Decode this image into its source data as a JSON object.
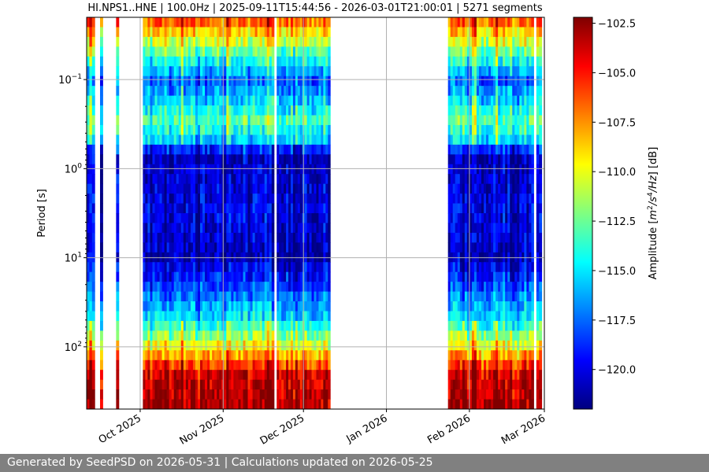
{
  "footer": {
    "text": "Generated by SeedPSD on 2026-05-31 | Calculations updated on 2026-05-25"
  },
  "chart_data": {
    "type": "heatmap",
    "title": "HI.NPS1..HNE | 100.0Hz | 2025-09-11T15:44:56 - 2026-03-01T21:00:01 | 5271 segments",
    "xlabel": "",
    "ylabel": "Period [s]",
    "x_range": [
      "2025-09-11",
      "2026-03-01"
    ],
    "x_ticks": [
      {
        "date": "2025-10-01",
        "label": "Oct 2025"
      },
      {
        "date": "2025-11-01",
        "label": "Nov 2025"
      },
      {
        "date": "2025-12-01",
        "label": "Dec 2025"
      },
      {
        "date": "2026-01-01",
        "label": "Jan 2026"
      },
      {
        "date": "2026-02-01",
        "label": "Feb 2026"
      },
      {
        "date": "2026-03-01",
        "label": "Mar 2026"
      }
    ],
    "y_scale": "log",
    "y_inverted": true,
    "y_range": [
      0.02,
      500
    ],
    "y_ticks": [
      {
        "value": 0.1,
        "base": "10",
        "exp": "−1"
      },
      {
        "value": 1,
        "base": "10",
        "exp": "0"
      },
      {
        "value": 10,
        "base": "10",
        "exp": "1"
      },
      {
        "value": 100,
        "base": "10",
        "exp": "2"
      }
    ],
    "grid": true,
    "colorbar": {
      "label": "Amplitude [m²/s⁴/Hz] [dB]",
      "colormap": "jet",
      "range": [
        -122,
        -102.2
      ],
      "ticks": [
        "−102.5",
        "−105.0",
        "−107.5",
        "−110.0",
        "−112.5",
        "−115.0",
        "−117.5",
        "−120.0"
      ],
      "tick_values": [
        -102.5,
        -105.0,
        -107.5,
        -110.0,
        -112.5,
        -115.0,
        -117.5,
        -120.0
      ]
    },
    "data_segments": [
      {
        "start": "2025-09-11",
        "end": "2025-09-14"
      },
      {
        "start": "2025-09-16",
        "end": "2025-09-17"
      },
      {
        "start": "2025-09-22",
        "end": "2025-09-23"
      },
      {
        "start": "2025-10-02",
        "end": "2025-11-20"
      },
      {
        "start": "2025-11-21",
        "end": "2025-12-11"
      },
      {
        "start": "2026-01-24",
        "end": "2026-02-25"
      },
      {
        "start": "2026-02-26",
        "end": "2026-02-28"
      }
    ],
    "spectral_profile": [
      {
        "period": 0.02,
        "level_db": -106
      },
      {
        "period": 0.05,
        "level_db": -113
      },
      {
        "period": 0.1,
        "level_db": -118
      },
      {
        "period": 0.3,
        "level_db": -113
      },
      {
        "period": 0.5,
        "level_db": -116
      },
      {
        "period": 0.7,
        "level_db": -121
      },
      {
        "period": 3,
        "level_db": -120
      },
      {
        "period": 10,
        "level_db": -121
      },
      {
        "period": 50,
        "level_db": -115
      },
      {
        "period": 100,
        "level_db": -110
      },
      {
        "period": 200,
        "level_db": -104
      },
      {
        "period": 500,
        "level_db": -103
      }
    ]
  }
}
